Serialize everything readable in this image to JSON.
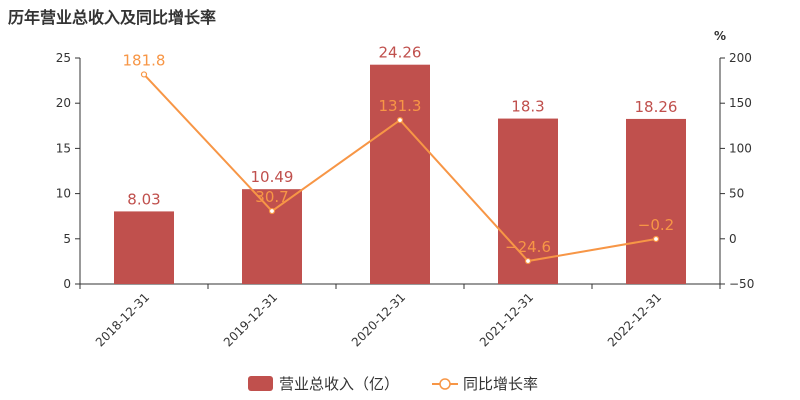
{
  "title": "历年营业总收入及同比增长率",
  "chart_data": {
    "type": "bar",
    "categories": [
      "2018-12-31",
      "2019-12-31",
      "2020-12-31",
      "2021-12-31",
      "2022-12-31"
    ],
    "series": [
      {
        "name": "营业总收入（亿）",
        "type": "bar",
        "axis": "left",
        "values": [
          8.03,
          10.49,
          24.26,
          18.3,
          18.26
        ],
        "color": "#c0504d"
      },
      {
        "name": "同比增长率",
        "type": "line",
        "axis": "right",
        "values": [
          181.8,
          30.7,
          131.3,
          -24.6,
          -0.2
        ],
        "color": "#f79646"
      }
    ],
    "y_left": {
      "ylim": [
        0,
        25
      ],
      "ticks": [
        0,
        5,
        10,
        15,
        20,
        25
      ]
    },
    "y_right": {
      "label": "%",
      "ylim": [
        -50,
        200
      ],
      "ticks": [
        -50,
        0,
        50,
        100,
        150,
        200
      ]
    },
    "bar_labels": [
      "8.03",
      "10.49",
      "24.26",
      "18.3",
      "18.26"
    ],
    "line_labels": [
      "181.8",
      "30.7",
      "131.3",
      "−24.6",
      "−0.2"
    ],
    "legend": {
      "position": "bottom"
    },
    "grid": false
  }
}
